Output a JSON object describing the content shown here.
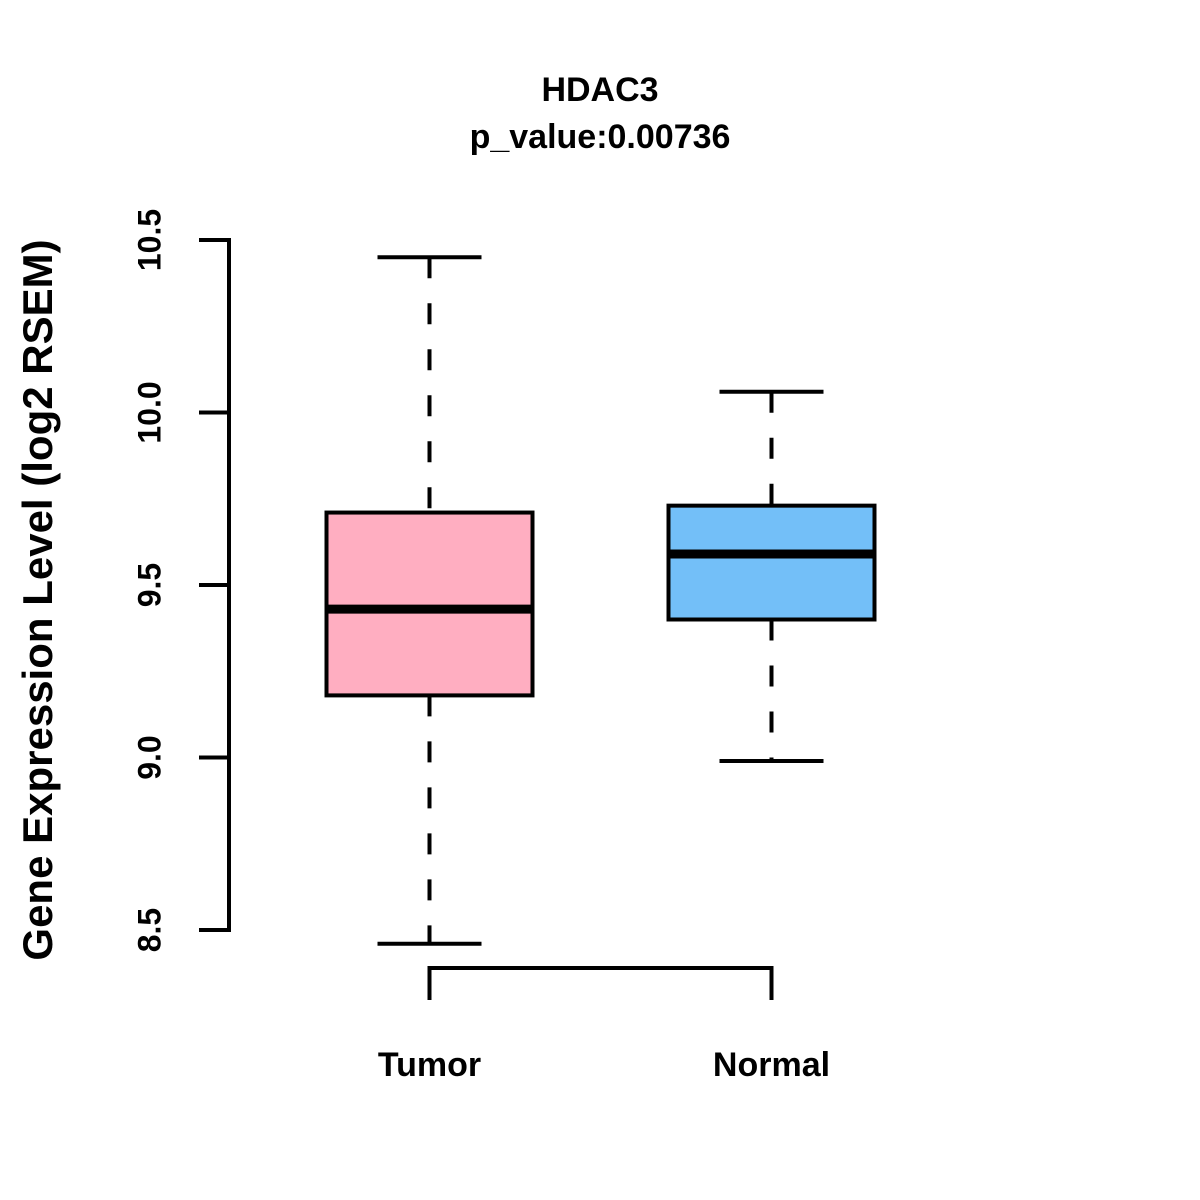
{
  "chart_data": {
    "type": "boxplot",
    "title": "HDAC3",
    "subtitle": "p_value:0.00736",
    "ylabel": "Gene Expression Level (log2 RSEM)",
    "categories": [
      "Tumor",
      "Normal"
    ],
    "y_ticks": [
      "8.5",
      "9.0",
      "9.5",
      "10.0",
      "10.5"
    ],
    "ylim": [
      8.5,
      10.5
    ],
    "grid": false,
    "legend": "none",
    "series": [
      {
        "name": "Tumor",
        "color": "#FFAEC1",
        "whisker_low": 8.46,
        "q1": 9.18,
        "median": 9.43,
        "q3": 9.71,
        "whisker_high": 10.45
      },
      {
        "name": "Normal",
        "color": "#73BFF8",
        "whisker_low": 8.99,
        "q1": 9.4,
        "median": 9.59,
        "q3": 9.73,
        "whisker_high": 10.06
      }
    ],
    "stroke_color": "#000000",
    "background": "#FFFFFF"
  }
}
